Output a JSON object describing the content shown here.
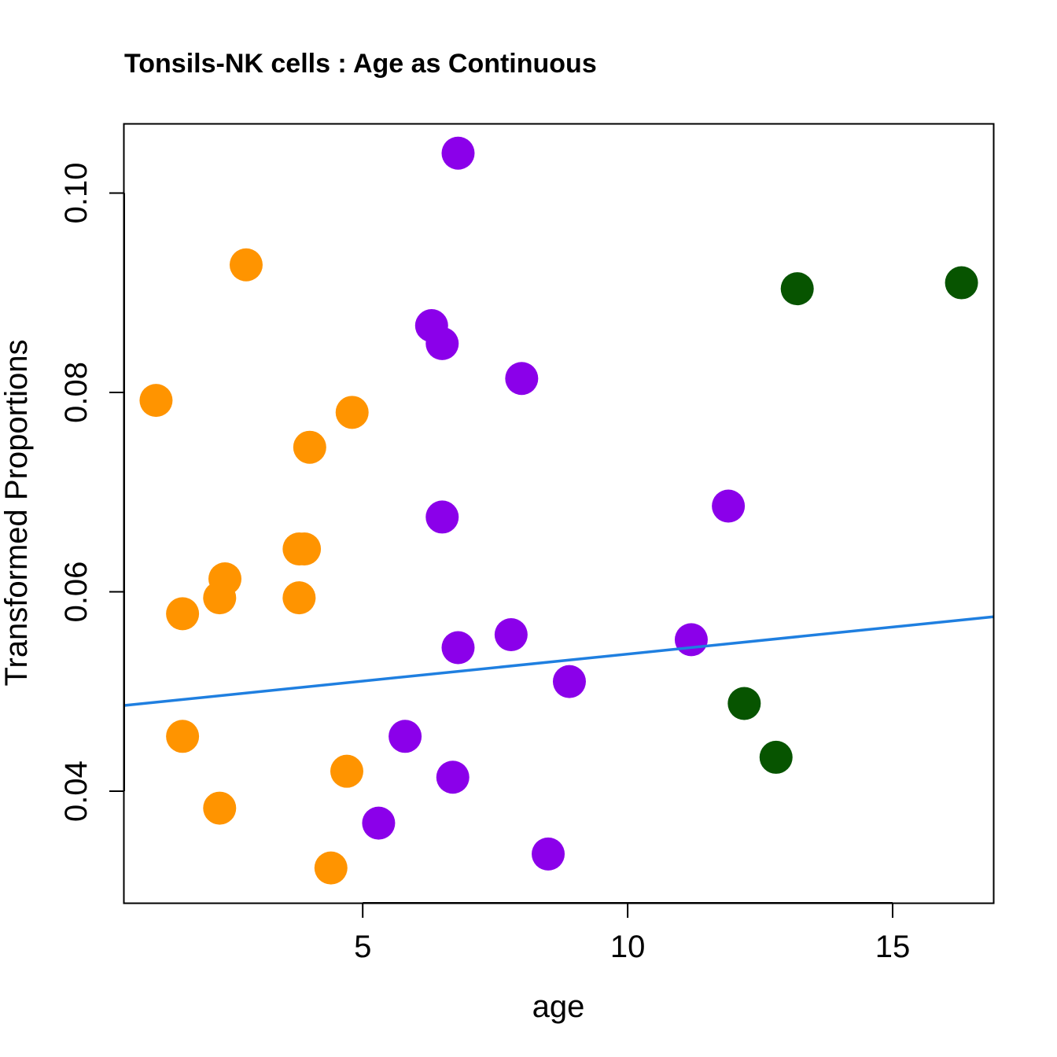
{
  "chart_data": {
    "type": "scatter",
    "title": "Tonsils-NK cells : Age as Continuous",
    "xlabel": "age",
    "ylabel": "Transformed Proportions",
    "xlim": [
      0.5,
      16.9
    ],
    "ylim": [
      0.0288,
      0.1069
    ],
    "xticks": [
      5,
      10,
      15
    ],
    "xtick_labels": [
      "5",
      "10",
      "15"
    ],
    "yticks": [
      0.04,
      0.06,
      0.08,
      0.1
    ],
    "ytick_labels": [
      "0.04",
      "0.06",
      "0.08",
      "0.10"
    ],
    "grid": false,
    "series": [
      {
        "name": "orange group",
        "color": "#FF9400",
        "points": [
          {
            "x": 1.1,
            "y": 0.0792
          },
          {
            "x": 1.6,
            "y": 0.0578
          },
          {
            "x": 1.6,
            "y": 0.0455
          },
          {
            "x": 2.3,
            "y": 0.0594
          },
          {
            "x": 2.4,
            "y": 0.0613
          },
          {
            "x": 2.8,
            "y": 0.0928
          },
          {
            "x": 2.3,
            "y": 0.0383
          },
          {
            "x": 3.8,
            "y": 0.0594
          },
          {
            "x": 3.8,
            "y": 0.0643
          },
          {
            "x": 3.9,
            "y": 0.0643
          },
          {
            "x": 4.0,
            "y": 0.0745
          },
          {
            "x": 4.8,
            "y": 0.078
          },
          {
            "x": 4.7,
            "y": 0.042
          },
          {
            "x": 4.4,
            "y": 0.0323
          }
        ]
      },
      {
        "name": "purple group",
        "color": "#8B00EA",
        "points": [
          {
            "x": 6.8,
            "y": 0.104
          },
          {
            "x": 6.3,
            "y": 0.0867
          },
          {
            "x": 6.5,
            "y": 0.0849
          },
          {
            "x": 8.0,
            "y": 0.0814
          },
          {
            "x": 6.5,
            "y": 0.0675
          },
          {
            "x": 6.8,
            "y": 0.0544
          },
          {
            "x": 7.8,
            "y": 0.0557
          },
          {
            "x": 8.9,
            "y": 0.051
          },
          {
            "x": 11.2,
            "y": 0.0552
          },
          {
            "x": 11.9,
            "y": 0.0686
          },
          {
            "x": 5.8,
            "y": 0.0455
          },
          {
            "x": 6.7,
            "y": 0.0414
          },
          {
            "x": 5.3,
            "y": 0.0368
          },
          {
            "x": 8.5,
            "y": 0.0337
          }
        ]
      },
      {
        "name": "green group",
        "color": "#075400",
        "points": [
          {
            "x": 13.2,
            "y": 0.0904
          },
          {
            "x": 16.3,
            "y": 0.091
          },
          {
            "x": 12.2,
            "y": 0.0488
          },
          {
            "x": 12.8,
            "y": 0.0434
          }
        ]
      }
    ],
    "regression_line": {
      "color": "#1F7FE0",
      "x": [
        0.5,
        16.9
      ],
      "y": [
        0.0486,
        0.0575
      ]
    }
  }
}
